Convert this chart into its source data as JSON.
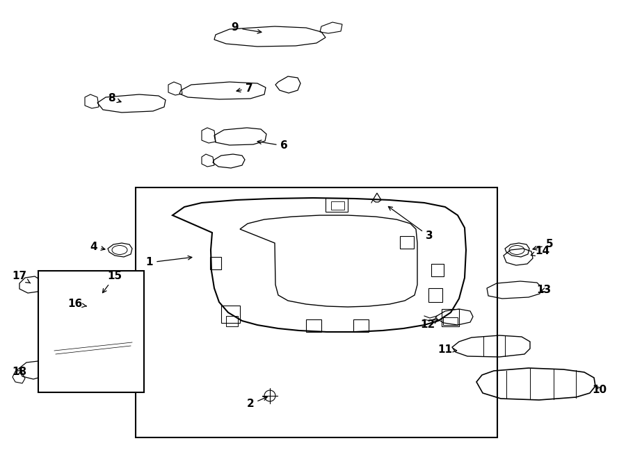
{
  "bg_color": "#ffffff",
  "line_color": "#000000",
  "text_color": "#000000",
  "fig_width": 9.0,
  "fig_height": 6.61,
  "dpi": 100
}
